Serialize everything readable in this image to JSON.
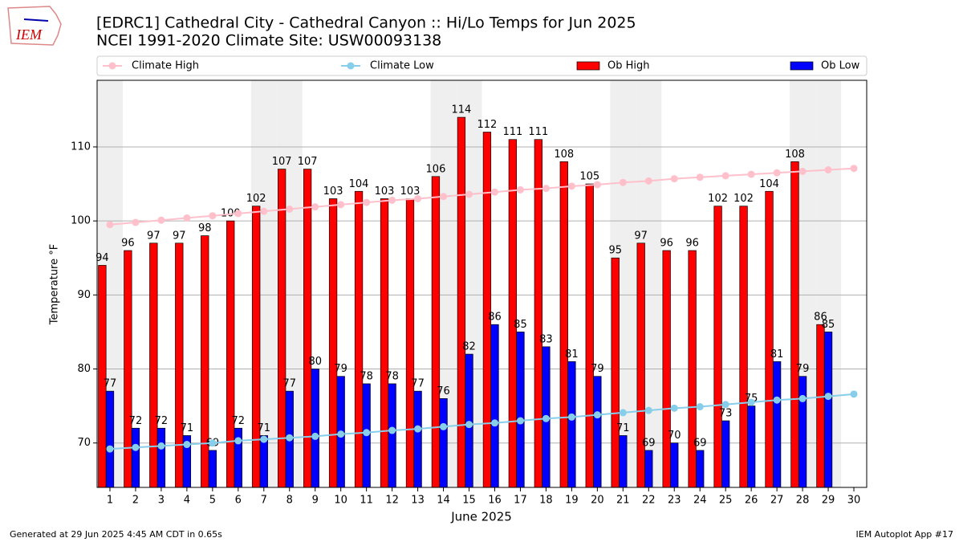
{
  "logo_text": "IEM",
  "footer_left": "Generated at 29 Jun 2025 4:45 AM CDT in 0.65s",
  "footer_right": "IEM Autoplot App #17",
  "chart_data": {
    "type": "bar",
    "title": "[EDRC1] Cathedral City - Cathedral Canyon :: Hi/Lo Temps for Jun 2025",
    "subtitle": "NCEI 1991-2020 Climate Site: USW00093138",
    "x_label": "June 2025",
    "y_label": "Temperature °F",
    "categories": [
      "1",
      "2",
      "3",
      "4",
      "5",
      "6",
      "7",
      "8",
      "9",
      "10",
      "11",
      "12",
      "13",
      "14",
      "15",
      "16",
      "17",
      "18",
      "19",
      "20",
      "21",
      "22",
      "23",
      "24",
      "25",
      "26",
      "27",
      "28",
      "29",
      "30"
    ],
    "ylim": [
      64,
      119
    ],
    "yticks": [
      70,
      80,
      90,
      100,
      110
    ],
    "grid": true,
    "series": [
      {
        "name": "Climate High",
        "type": "line",
        "color": "#ffc0cb",
        "values": [
          99.5,
          99.8,
          100.1,
          100.4,
          100.7,
          101.0,
          101.3,
          101.6,
          101.9,
          102.2,
          102.5,
          102.8,
          103.0,
          103.3,
          103.6,
          103.9,
          104.2,
          104.4,
          104.7,
          104.9,
          105.2,
          105.4,
          105.7,
          105.9,
          106.1,
          106.3,
          106.5,
          106.7,
          106.9,
          107.1
        ]
      },
      {
        "name": "Climate Low",
        "type": "line",
        "color": "#87ceeb",
        "values": [
          69.2,
          69.4,
          69.6,
          69.8,
          70.0,
          70.3,
          70.5,
          70.7,
          70.9,
          71.2,
          71.4,
          71.7,
          71.9,
          72.2,
          72.5,
          72.7,
          73.0,
          73.3,
          73.5,
          73.8,
          74.1,
          74.4,
          74.7,
          74.9,
          75.2,
          75.5,
          75.8,
          76.0,
          76.3,
          76.6
        ]
      },
      {
        "name": "Ob High",
        "type": "bar",
        "color": "#ff0000",
        "values": [
          94,
          96,
          97,
          97,
          98,
          100,
          102,
          107,
          107,
          103,
          104,
          103,
          103,
          106,
          114,
          112,
          111,
          111,
          108,
          105,
          95,
          97,
          96,
          96,
          102,
          102,
          104,
          108,
          86,
          null
        ]
      },
      {
        "name": "Ob Low",
        "type": "bar",
        "color": "#0000ff",
        "values": [
          77,
          72,
          72,
          71,
          69,
          72,
          71,
          77,
          80,
          79,
          78,
          78,
          77,
          76,
          82,
          86,
          85,
          83,
          81,
          79,
          71,
          69,
          70,
          69,
          73,
          75,
          81,
          79,
          85,
          null
        ]
      }
    ]
  }
}
